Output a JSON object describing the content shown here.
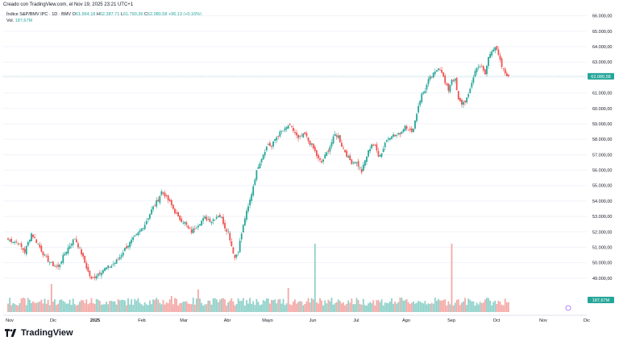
{
  "caption": "Creado con TradingView.com, el Nov 19, 2025 23:21 UTC+1",
  "legend": {
    "symbol": "Índice S&P/BMV IPC · 1D · BMV",
    "o_label": "O",
    "o_value": "61.964,18",
    "h_label": "H",
    "h_value": "62.387,71",
    "l_label": "L",
    "l_value": "61.790,36",
    "c_label": "C",
    "c_value": "62.080,58",
    "change": "+96,13 (+0,16%)",
    "vol_label": "Vol.",
    "vol_value": "187,67M"
  },
  "brand": "TradingView",
  "colors": {
    "up": "#26a69a",
    "down": "#ef5350",
    "up_vol": "#8fd1c9",
    "down_vol": "#f4a9a7",
    "grid": "#f0f3fa",
    "axis_text": "#131722",
    "price_line": "#26a69a"
  },
  "chart_data": {
    "type": "candlestick",
    "title": "Índice S&P/BMV IPC · 1D · BMV",
    "x_labels": [
      "Nov",
      "Dic",
      "2025",
      "Feb",
      "Mar",
      "Abr",
      "Mayo",
      "Jun",
      "Jul",
      "Ago",
      "Sep",
      "Oct",
      "Nov",
      "Dic"
    ],
    "y_ticks": [
      49000,
      50000,
      51000,
      52000,
      53000,
      54000,
      55000,
      56000,
      57000,
      58000,
      59000,
      60000,
      61000,
      62000,
      63000,
      64000,
      65000,
      66000
    ],
    "y_tick_labels": [
      "49.000,00",
      "50.000,00",
      "51.000,00",
      "52.000,00",
      "53.000,00",
      "54.000,00",
      "55.000,00",
      "56.000,00",
      "57.000,00",
      "58.000,00",
      "59.000,00",
      "60.000,00",
      "61.000,00",
      "62.000,00",
      "63.000,00",
      "64.000,00",
      "65.000,00",
      "66.000,00"
    ],
    "ylim": [
      48000,
      66400
    ],
    "last_price": 62080.58,
    "last_price_label": "62.080,58",
    "last_volume_label": "187,67M",
    "close_path": [
      [
        0,
        51500
      ],
      [
        6,
        51300
      ],
      [
        10,
        50700
      ],
      [
        14,
        51900
      ],
      [
        18,
        51200
      ],
      [
        22,
        50400
      ],
      [
        26,
        49900
      ],
      [
        30,
        49700
      ],
      [
        34,
        50600
      ],
      [
        38,
        51300
      ],
      [
        40,
        51600
      ],
      [
        44,
        50600
      ],
      [
        48,
        49400
      ],
      [
        50,
        48900
      ],
      [
        54,
        49300
      ],
      [
        58,
        49600
      ],
      [
        62,
        49800
      ],
      [
        66,
        50200
      ],
      [
        70,
        50900
      ],
      [
        74,
        51400
      ],
      [
        78,
        51900
      ],
      [
        82,
        52500
      ],
      [
        86,
        53400
      ],
      [
        90,
        54100
      ],
      [
        92,
        54600
      ],
      [
        94,
        54400
      ],
      [
        98,
        53700
      ],
      [
        102,
        52900
      ],
      [
        106,
        52600
      ],
      [
        108,
        52200
      ],
      [
        110,
        52000
      ],
      [
        114,
        52500
      ],
      [
        118,
        52900
      ],
      [
        122,
        52700
      ],
      [
        126,
        53100
      ],
      [
        128,
        52900
      ],
      [
        130,
        52300
      ],
      [
        132,
        52000
      ],
      [
        134,
        51100
      ],
      [
        136,
        50300
      ],
      [
        138,
        50800
      ],
      [
        140,
        51900
      ],
      [
        142,
        52900
      ],
      [
        144,
        53600
      ],
      [
        146,
        54500
      ],
      [
        148,
        55500
      ],
      [
        150,
        56300
      ],
      [
        152,
        56800
      ],
      [
        154,
        57300
      ],
      [
        156,
        57700
      ],
      [
        158,
        57500
      ],
      [
        160,
        58000
      ],
      [
        162,
        58300
      ],
      [
        164,
        58500
      ],
      [
        166,
        58600
      ],
      [
        168,
        58900
      ],
      [
        170,
        58700
      ],
      [
        172,
        58400
      ],
      [
        174,
        58000
      ],
      [
        176,
        58200
      ],
      [
        178,
        58300
      ],
      [
        180,
        57900
      ],
      [
        182,
        57600
      ],
      [
        184,
        57200
      ],
      [
        186,
        56700
      ],
      [
        188,
        56500
      ],
      [
        190,
        56900
      ],
      [
        192,
        57300
      ],
      [
        194,
        57800
      ],
      [
        196,
        58300
      ],
      [
        198,
        58200
      ],
      [
        200,
        57600
      ],
      [
        202,
        57200
      ],
      [
        204,
        56800
      ],
      [
        206,
        56500
      ],
      [
        208,
        56600
      ],
      [
        210,
        56300
      ],
      [
        212,
        55900
      ],
      [
        214,
        56600
      ],
      [
        216,
        57200
      ],
      [
        218,
        57700
      ],
      [
        220,
        57500
      ],
      [
        222,
        57000
      ],
      [
        224,
        57100
      ],
      [
        226,
        57800
      ],
      [
        228,
        58100
      ],
      [
        230,
        58300
      ],
      [
        232,
        58200
      ],
      [
        234,
        58300
      ],
      [
        236,
        58500
      ],
      [
        238,
        58900
      ],
      [
        240,
        58700
      ],
      [
        242,
        58400
      ],
      [
        244,
        59200
      ],
      [
        246,
        60200
      ],
      [
        248,
        60900
      ],
      [
        250,
        61200
      ],
      [
        252,
        61800
      ],
      [
        254,
        62100
      ],
      [
        256,
        62300
      ],
      [
        258,
        62700
      ],
      [
        260,
        62400
      ],
      [
        262,
        61600
      ],
      [
        264,
        61200
      ],
      [
        266,
        61900
      ],
      [
        268,
        61800
      ],
      [
        270,
        60500
      ],
      [
        272,
        60300
      ],
      [
        274,
        60500
      ],
      [
        276,
        60800
      ],
      [
        278,
        61700
      ],
      [
        280,
        62400
      ],
      [
        282,
        62800
      ],
      [
        284,
        62600
      ],
      [
        286,
        62200
      ],
      [
        288,
        63300
      ],
      [
        290,
        63800
      ],
      [
        292,
        64000
      ],
      [
        294,
        63400
      ],
      [
        296,
        62700
      ],
      [
        298,
        62300
      ],
      [
        300,
        62080
      ]
    ],
    "volume_spikes": [
      {
        "t": 26,
        "rel": 0.35,
        "up": false
      },
      {
        "t": 98,
        "rel": 0.2,
        "up": false
      },
      {
        "t": 114,
        "rel": 0.28,
        "up": false
      },
      {
        "t": 132,
        "rel": 0.12,
        "up": true
      },
      {
        "t": 168,
        "rel": 0.3,
        "up": false
      },
      {
        "t": 184,
        "rel": 0.85,
        "up": true
      },
      {
        "t": 266,
        "rel": 0.85,
        "up": false
      }
    ]
  }
}
